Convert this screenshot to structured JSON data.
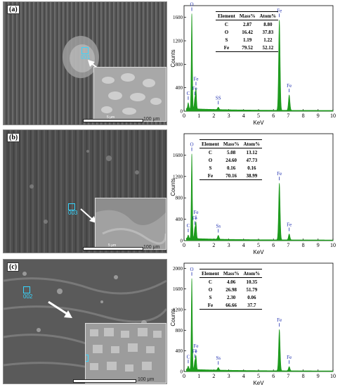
{
  "panels": [
    {
      "sem_label": "(a)",
      "box_label": "001",
      "scale_text": "100 μm",
      "inset_scale": "5 μm",
      "chart_label": "(a)",
      "table": {
        "headers": [
          "Element",
          "Mass%",
          "Atom%"
        ],
        "rows": [
          [
            "C",
            "2.87",
            "8.80"
          ],
          [
            "O",
            "16.42",
            "37.83"
          ],
          [
            "S",
            "1.19",
            "1.22"
          ],
          [
            "Fe",
            "79.52",
            "52.12"
          ]
        ]
      }
    },
    {
      "sem_label": "(b)",
      "box_label": "003",
      "scale_text": "100 μm",
      "inset_scale": "5 μm",
      "chart_label": "(b)",
      "table": {
        "headers": [
          "Element",
          "Mass%",
          "Atom%"
        ],
        "rows": [
          [
            "C",
            "5.08",
            "13.12"
          ],
          [
            "O",
            "24.60",
            "47.73"
          ],
          [
            "S",
            "0.16",
            "0.16"
          ],
          [
            "Fe",
            "70.16",
            "38.99"
          ]
        ]
      }
    },
    {
      "sem_label": "(c)",
      "box_label": "002",
      "scale_text": "100 μm",
      "inset_scale": "",
      "chart_label": "(c)",
      "table": {
        "headers": [
          "Element",
          "Mass%",
          "Atom%"
        ],
        "rows": [
          [
            "C",
            "4.06",
            "10.35"
          ],
          [
            "O",
            "26.98",
            "51.79"
          ],
          [
            "S",
            "2.30",
            "0.06"
          ],
          [
            "Fe",
            "66.66",
            "37.7"
          ]
        ]
      }
    }
  ],
  "colors": {
    "spectrum": "#1e9b1e",
    "label": "#1f2fb0",
    "marker": "#37d6ff"
  },
  "chart_data": [
    {
      "type": "area",
      "title": "(a)",
      "xlabel": "KeV",
      "ylabel": "Counts",
      "xlim": [
        0,
        10
      ],
      "ylim": [
        0,
        1800
      ],
      "xticks": [
        0,
        1,
        2,
        3,
        4,
        5,
        6,
        7,
        8,
        9,
        10
      ],
      "yticks": [
        0,
        400,
        800,
        1200,
        1600
      ],
      "peaks": [
        {
          "label": "C",
          "x": 0.28,
          "y": 100
        },
        {
          "label": "O",
          "x": 0.52,
          "y": 1620
        },
        {
          "label": "Fe",
          "x": 0.72,
          "y": 160
        },
        {
          "label": "Fe",
          "x": 0.8,
          "y": 340
        },
        {
          "label": "SS",
          "x": 2.3,
          "y": 40
        },
        {
          "label": "Fe",
          "x": 6.4,
          "y": 1540
        },
        {
          "label": "Fe",
          "x": 7.06,
          "y": 260
        }
      ]
    },
    {
      "type": "area",
      "title": "(b)",
      "xlabel": "KeV",
      "ylabel": "Counts",
      "xlim": [
        0,
        10
      ],
      "ylim": [
        0,
        2000
      ],
      "xticks": [
        0,
        1,
        2,
        3,
        4,
        5,
        6,
        7,
        8,
        9,
        10
      ],
      "yticks": [
        0,
        400,
        800,
        1200,
        1600
      ],
      "peaks": [
        {
          "label": "C",
          "x": 0.28,
          "y": 60
        },
        {
          "label": "O",
          "x": 0.52,
          "y": 1580
        },
        {
          "label": "Fe",
          "x": 0.72,
          "y": 180
        },
        {
          "label": "Fe",
          "x": 0.8,
          "y": 300
        },
        {
          "label": "Ss",
          "x": 2.3,
          "y": 70
        },
        {
          "label": "Fe",
          "x": 6.4,
          "y": 1060
        },
        {
          "label": "Fe",
          "x": 7.06,
          "y": 110
        }
      ]
    },
    {
      "type": "area",
      "title": "(c)",
      "xlabel": "KeV",
      "ylabel": "Counts",
      "xlim": [
        0,
        10
      ],
      "ylim": [
        0,
        2100
      ],
      "xticks": [
        0,
        1,
        2,
        3,
        4,
        5,
        6,
        7,
        8,
        9,
        10
      ],
      "yticks": [
        0,
        400,
        800,
        1200,
        1600,
        2000
      ],
      "peaks": [
        {
          "label": "C",
          "x": 0.28,
          "y": 60
        },
        {
          "label": "O",
          "x": 0.52,
          "y": 1760
        },
        {
          "label": "Fe",
          "x": 0.72,
          "y": 150
        },
        {
          "label": "Fe",
          "x": 0.8,
          "y": 260
        },
        {
          "label": "Ss",
          "x": 2.3,
          "y": 50
        },
        {
          "label": "Fe",
          "x": 6.4,
          "y": 800
        },
        {
          "label": "Fe",
          "x": 7.06,
          "y": 80
        }
      ]
    }
  ]
}
